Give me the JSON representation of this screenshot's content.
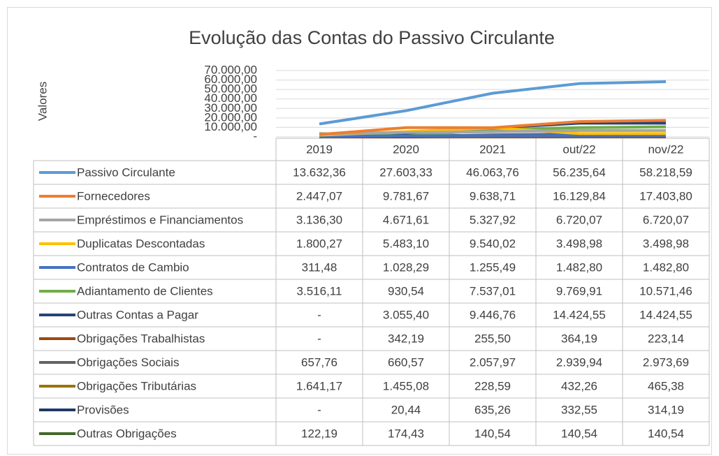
{
  "chart_data": {
    "type": "line",
    "title": "Evolução das Contas do Passivo Circulante",
    "y_label": "Valores",
    "categories": [
      "2019",
      "2020",
      "2021",
      "out/22",
      "nov/22"
    ],
    "ylim": [
      0,
      70000
    ],
    "yticks": [
      {
        "value": 0,
        "label": "-"
      },
      {
        "value": 10000,
        "label": "10.000,00"
      },
      {
        "value": 20000,
        "label": "20.000,00"
      },
      {
        "value": 30000,
        "label": "30.000,00"
      },
      {
        "value": 40000,
        "label": "40.000,00"
      },
      {
        "value": 50000,
        "label": "50.000,00"
      },
      {
        "value": 60000,
        "label": "60.000,00"
      },
      {
        "value": 70000,
        "label": "70.000,00"
      }
    ],
    "grid": true,
    "series": [
      {
        "name": "Passivo Circulante",
        "color": "#5b9bd5",
        "values": [
          13632.36,
          27603.33,
          46063.76,
          56235.64,
          58218.59
        ],
        "value_labels": [
          "13.632,36",
          "27.603,33",
          "46.063,76",
          "56.235,64",
          "58.218,59"
        ]
      },
      {
        "name": "Fornecedores",
        "color": "#ed7d31",
        "values": [
          2447.07,
          9781.67,
          9638.71,
          16129.84,
          17403.8
        ],
        "value_labels": [
          "2.447,07",
          "9.781,67",
          "9.638,71",
          "16.129,84",
          "17.403,80"
        ]
      },
      {
        "name": "Empréstimos e Financiamentos",
        "color": "#a5a5a5",
        "values": [
          3136.3,
          4671.61,
          5327.92,
          6720.07,
          6720.07
        ],
        "value_labels": [
          "3.136,30",
          "4.671,61",
          "5.327,92",
          "6.720,07",
          "6.720,07"
        ]
      },
      {
        "name": "Duplicatas Descontadas",
        "color": "#ffc000",
        "values": [
          1800.27,
          5483.1,
          9540.02,
          3498.98,
          3498.98
        ],
        "value_labels": [
          "1.800,27",
          "5.483,10",
          "9.540,02",
          "3.498,98",
          "3.498,98"
        ]
      },
      {
        "name": "Contratos de Cambio",
        "color": "#4472c4",
        "values": [
          311.48,
          1028.29,
          1255.49,
          1482.8,
          1482.8
        ],
        "value_labels": [
          "311,48",
          "1.028,29",
          "1.255,49",
          "1.482,80",
          "1.482,80"
        ]
      },
      {
        "name": "Adiantamento de Clientes",
        "color": "#70ad47",
        "values": [
          3516.11,
          930.54,
          7537.01,
          9769.91,
          10571.46
        ],
        "value_labels": [
          "3.516,11",
          "930,54",
          "7.537,01",
          "9.769,91",
          "10.571,46"
        ]
      },
      {
        "name": "Outras Contas a Pagar",
        "color": "#264478",
        "values": [
          0,
          3055.4,
          9446.76,
          14424.55,
          14424.55
        ],
        "value_labels": [
          "-",
          "3.055,40",
          "9.446,76",
          "14.424,55",
          "14.424,55"
        ]
      },
      {
        "name": "Obrigações Trabalhistas",
        "color": "#9e480e",
        "values": [
          0,
          342.19,
          255.5,
          364.19,
          223.14
        ],
        "value_labels": [
          "-",
          "342,19",
          "255,50",
          "364,19",
          "223,14"
        ]
      },
      {
        "name": "Obrigações Sociais",
        "color": "#636363",
        "values": [
          657.76,
          660.57,
          2057.97,
          2939.94,
          2973.69
        ],
        "value_labels": [
          "657,76",
          "660,57",
          "2.057,97",
          "2.939,94",
          "2.973,69"
        ]
      },
      {
        "name": "Obrigações Tributárias",
        "color": "#997300",
        "values": [
          1641.17,
          1455.08,
          228.59,
          432.26,
          465.38
        ],
        "value_labels": [
          "1.641,17",
          "1.455,08",
          "228,59",
          "432,26",
          "465,38"
        ]
      },
      {
        "name": "Provisões",
        "color": "#203864",
        "values": [
          0,
          20.44,
          635.26,
          332.55,
          314.19
        ],
        "value_labels": [
          "-",
          "20,44",
          "635,26",
          "332,55",
          "314,19"
        ]
      },
      {
        "name": "Outras Obrigações",
        "color": "#43682b",
        "values": [
          122.19,
          174.43,
          140.54,
          140.54,
          140.54
        ],
        "value_labels": [
          "122,19",
          "174,43",
          "140,54",
          "140,54",
          "140,54"
        ]
      }
    ]
  }
}
